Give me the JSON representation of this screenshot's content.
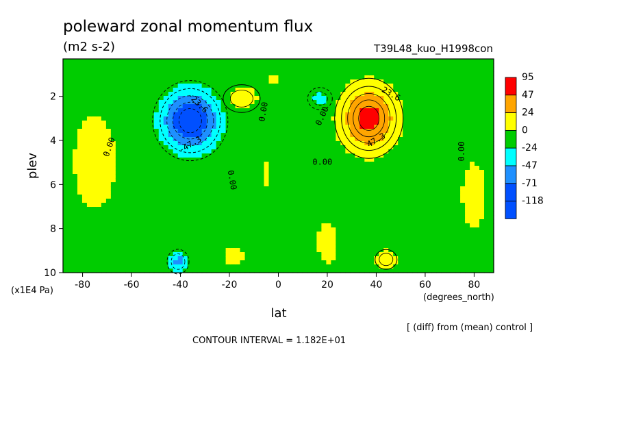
{
  "chart_data": {
    "type": "heatmap",
    "title": "poleward zonal momentum flux",
    "units": "(m2 s-2)",
    "run_label": "T39L48_kuo_H1998con",
    "xlabel": "lat",
    "xunits": "(degrees_north)",
    "ylabel": "plev",
    "yunits": "(x1E4 Pa)",
    "subtitle": "[ (diff) from (mean) control ]",
    "contour_interval": "CONTOUR INTERVAL = 1.182E+01",
    "xlim": [
      -88,
      88
    ],
    "ylim": [
      0.3,
      10
    ],
    "y_inverted": true,
    "x_ticks": [
      {
        "value": -80,
        "label": "-80"
      },
      {
        "value": -60,
        "label": "-60"
      },
      {
        "value": -40,
        "label": "-40"
      },
      {
        "value": -20,
        "label": "-20"
      },
      {
        "value": 0,
        "label": "0"
      },
      {
        "value": 20,
        "label": "20"
      },
      {
        "value": 40,
        "label": "40"
      },
      {
        "value": 60,
        "label": "60"
      },
      {
        "value": 80,
        "label": "80"
      }
    ],
    "y_ticks": [
      {
        "value": 2,
        "label": "2"
      },
      {
        "value": 4,
        "label": "4"
      },
      {
        "value": 6,
        "label": "6"
      },
      {
        "value": 8,
        "label": "8"
      },
      {
        "value": 10,
        "label": "10"
      }
    ],
    "colorbar": {
      "levels": [
        {
          "label": "95",
          "color": "#ff0000"
        },
        {
          "label": "47",
          "color": "#ffa500"
        },
        {
          "label": "24",
          "color": "#ffff00"
        },
        {
          "label": "0",
          "color": "#00cc00"
        },
        {
          "label": "-24",
          "color": "#00ffff"
        },
        {
          "label": "-47",
          "color": "#1e90ff"
        },
        {
          "label": "-71",
          "color": "#0050ff"
        },
        {
          "label": "-118",
          "color": "#0050ff"
        }
      ]
    },
    "features": [
      {
        "type": "min",
        "lat": -36,
        "plev": 3.1,
        "value": -95
      },
      {
        "type": "max",
        "lat": 37,
        "plev": 3.0,
        "value": 92
      },
      {
        "type": "max",
        "lat": -15,
        "plev": 2.1,
        "value": 30
      },
      {
        "type": "min",
        "lat": 17,
        "plev": 2.1,
        "value": -28
      },
      {
        "type": "min",
        "lat": -41,
        "plev": 9.5,
        "value": -50
      },
      {
        "type": "max",
        "lat": 44,
        "plev": 9.4,
        "value": 30
      }
    ],
    "contour_labels": [
      {
        "text": "-23.6",
        "lat": -33,
        "plev": 2.3,
        "rotate": 45
      },
      {
        "text": "-47.3",
        "lat": -36,
        "plev": 4.2,
        "rotate": -30
      },
      {
        "text": "0.00",
        "lat": -69,
        "plev": 4.3,
        "rotate": -70
      },
      {
        "text": "0.00",
        "lat": -6,
        "plev": 2.7,
        "rotate": -80
      },
      {
        "text": "0.00",
        "lat": -19,
        "plev": 5.8,
        "rotate": 80
      },
      {
        "text": "0.00",
        "lat": 18,
        "plev": 2.9,
        "rotate": -65
      },
      {
        "text": "0.00",
        "lat": 18,
        "plev": 5.0,
        "rotate": 0
      },
      {
        "text": "23.6",
        "lat": 46,
        "plev": 1.9,
        "rotate": 30
      },
      {
        "text": "47.3",
        "lat": 40,
        "plev": 4.0,
        "rotate": -30
      },
      {
        "text": "0.00",
        "lat": 75,
        "plev": 4.5,
        "rotate": -90
      }
    ]
  }
}
